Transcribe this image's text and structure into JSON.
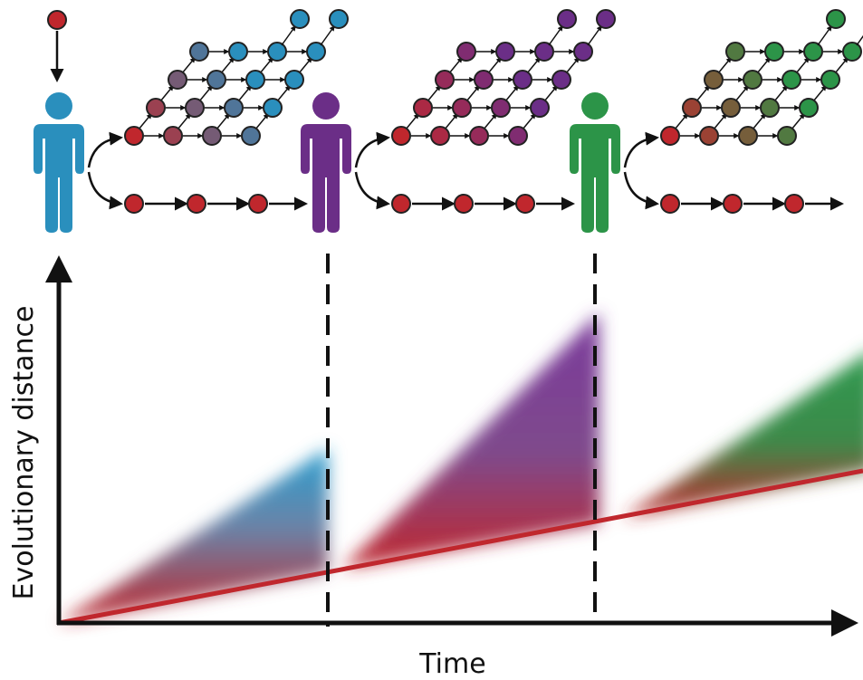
{
  "axes": {
    "x_label": "Time",
    "y_label": "Evolutionary distance"
  }
}
